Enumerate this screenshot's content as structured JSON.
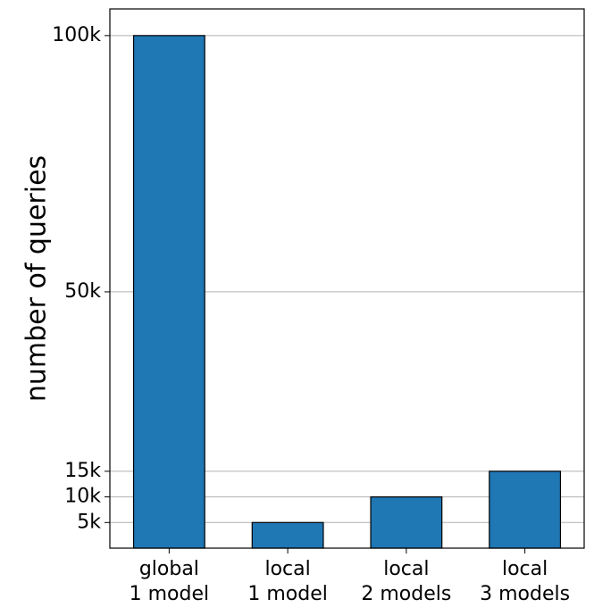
{
  "chart_data": {
    "type": "bar",
    "y_label": "number of queries",
    "categories": [
      "global\n1 model",
      "local\n1 model",
      "local\n2 models",
      "local\n3 models"
    ],
    "values": [
      100000,
      5000,
      10000,
      15000
    ],
    "color": "#1f77b4",
    "ylim": [
      0,
      105200
    ],
    "yticks": [
      {
        "value": 5000,
        "label": "5k"
      },
      {
        "value": 10000,
        "label": "10k"
      },
      {
        "value": 15000,
        "label": "15k"
      },
      {
        "value": 50000,
        "label": "50k"
      },
      {
        "value": 100000,
        "label": "100k"
      }
    ],
    "grid": true
  }
}
